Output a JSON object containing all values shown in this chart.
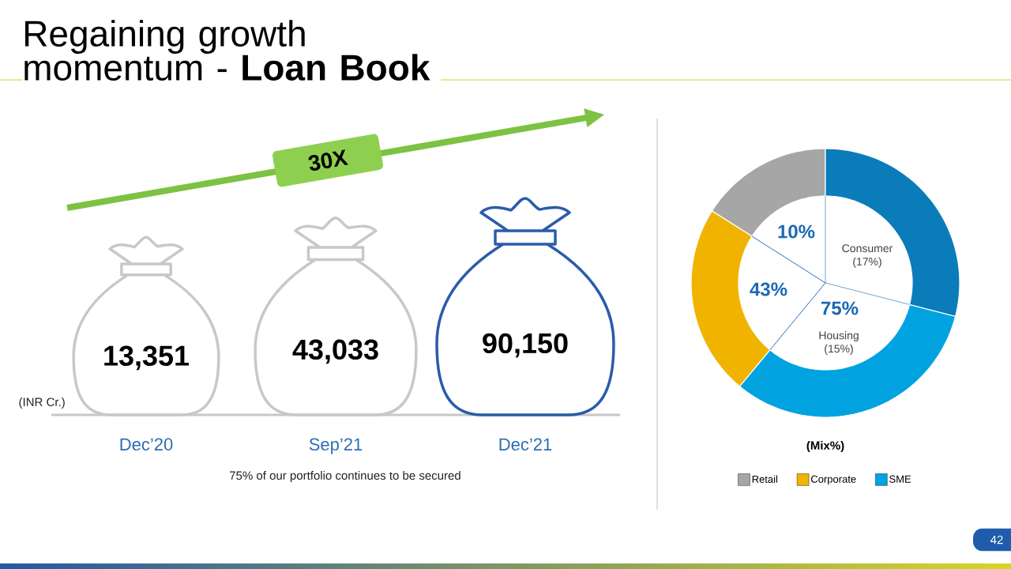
{
  "chart_data": [
    {
      "type": "other",
      "title": "Regaining growth momentum - **Loan Book**",
      "ylabel": "(INR Cr.)",
      "categories": [
        "Dec’20",
        "Sep’21",
        "Dec’21"
      ],
      "values": [
        13351,
        43033,
        90150
      ],
      "value_labels": [
        "13,351",
        "43,033",
        "90,150"
      ],
      "colors": [
        "#c8c8c8",
        "#c8c8c8",
        "#2a5caa"
      ],
      "annotations": [
        "30X",
        "75% of our portfolio continues to be secured"
      ]
    },
    {
      "type": "donut",
      "xlabel": "(Mix%)",
      "categories": [
        "Retail",
        "Corporate",
        "SME",
        null
      ],
      "values": [
        16,
        23,
        32,
        29
      ],
      "colors": [
        "#a6a6a6",
        "#f0b400",
        "#00a3e0",
        "#0a7cb9"
      ],
      "legend": "bottom",
      "annotations": [
        "10%",
        "43%",
        "75%",
        "Consumer (17%)",
        "Housing (15%)",
        "42"
      ]
    }
  ]
}
